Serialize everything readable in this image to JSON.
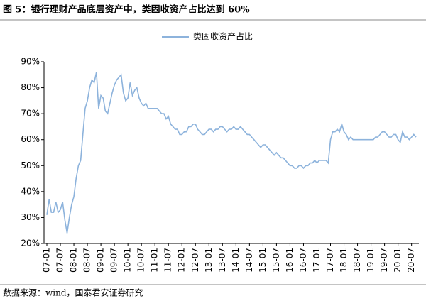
{
  "chart_data": {
    "type": "line",
    "title": "图 5：银行理财产品底层资产中，类固收资产占比达到 60%",
    "source": "数据来源：wind，国泰君安证券研究",
    "categories": [
      "07-01",
      null,
      null,
      null,
      null,
      null,
      "07-07",
      null,
      null,
      null,
      null,
      null,
      "08-01",
      null,
      null,
      null,
      null,
      null,
      "08-07",
      null,
      null,
      null,
      null,
      null,
      "09-01",
      null,
      null,
      null,
      null,
      null,
      "09-07",
      null,
      null,
      null,
      null,
      null,
      "10-01",
      null,
      null,
      null,
      null,
      null,
      "10-07",
      null,
      null,
      null,
      null,
      null,
      "11-01",
      null,
      null,
      null,
      null,
      null,
      "11-07",
      null,
      null,
      null,
      null,
      null,
      "12-01",
      null,
      null,
      null,
      null,
      null,
      "12-07",
      null,
      null,
      null,
      null,
      null,
      "13-01",
      null,
      null,
      null,
      null,
      null,
      "13-07",
      null,
      null,
      null,
      null,
      null,
      "14-01",
      null,
      null,
      null,
      null,
      null,
      "14-07",
      null,
      null,
      null,
      null,
      null,
      "15-01",
      null,
      null,
      null,
      null,
      null,
      "15-07",
      null,
      null,
      null,
      null,
      null,
      "16-01",
      null,
      null,
      null,
      null,
      null,
      "16-07",
      null,
      null,
      null,
      null,
      null,
      "17-01",
      null,
      null,
      null,
      null,
      null,
      "17-07",
      null,
      null,
      null,
      null,
      null,
      "18-01",
      null,
      null,
      null,
      null,
      null,
      "18-07",
      null,
      null,
      null,
      null,
      null,
      "19-01",
      null,
      null,
      null,
      null,
      null,
      "19-07",
      null,
      null,
      null,
      null,
      null,
      "20-01",
      null,
      null,
      null,
      null,
      null,
      "20-07",
      null,
      null
    ],
    "series": [
      {
        "name": "类固收资产占比",
        "color": "#8db3dc",
        "values": [
          31,
          37,
          32,
          32,
          36,
          32,
          33,
          36,
          29,
          24,
          30,
          35,
          38,
          45,
          50,
          52,
          62,
          72,
          75,
          80,
          83,
          82,
          86,
          72,
          77,
          76,
          71,
          70,
          74,
          78,
          81,
          83,
          84,
          85,
          78,
          75,
          76,
          82,
          77,
          79,
          80,
          76,
          74,
          73,
          74,
          72,
          72,
          72,
          72,
          72,
          71,
          70,
          70,
          68,
          69,
          66,
          65,
          64,
          64,
          62,
          62,
          63,
          63,
          65,
          65,
          66,
          66,
          64,
          63,
          62,
          62,
          63,
          64,
          64,
          63,
          64,
          64,
          65,
          65,
          64,
          63,
          64,
          64,
          65,
          64,
          64,
          65,
          64,
          63,
          62,
          62,
          61,
          60,
          59,
          58,
          57,
          58,
          58,
          57,
          56,
          55,
          54,
          55,
          54,
          53,
          53,
          52,
          51,
          50,
          50,
          49,
          49,
          50,
          50,
          49,
          50,
          50,
          51,
          51,
          52,
          51,
          52,
          52,
          52,
          52,
          51,
          60,
          63,
          63,
          64,
          63,
          66,
          63,
          62,
          60,
          61,
          60,
          60,
          60,
          60,
          60,
          60,
          60,
          60,
          60,
          60,
          61,
          61,
          62,
          63,
          63,
          62,
          61,
          61,
          62,
          62,
          60,
          59,
          63,
          61,
          61,
          60,
          61,
          62,
          61
        ]
      }
    ],
    "ylim": [
      20,
      90
    ],
    "yticks": [
      {
        "value": 20,
        "label": "20%"
      },
      {
        "value": 30,
        "label": "30%"
      },
      {
        "value": 40,
        "label": "40%"
      },
      {
        "value": 50,
        "label": "50%"
      },
      {
        "value": 60,
        "label": "60%"
      },
      {
        "value": 70,
        "label": "70%"
      },
      {
        "value": 80,
        "label": "80%"
      },
      {
        "value": 90,
        "label": "90%"
      }
    ],
    "grid": false,
    "legend": "top"
  }
}
